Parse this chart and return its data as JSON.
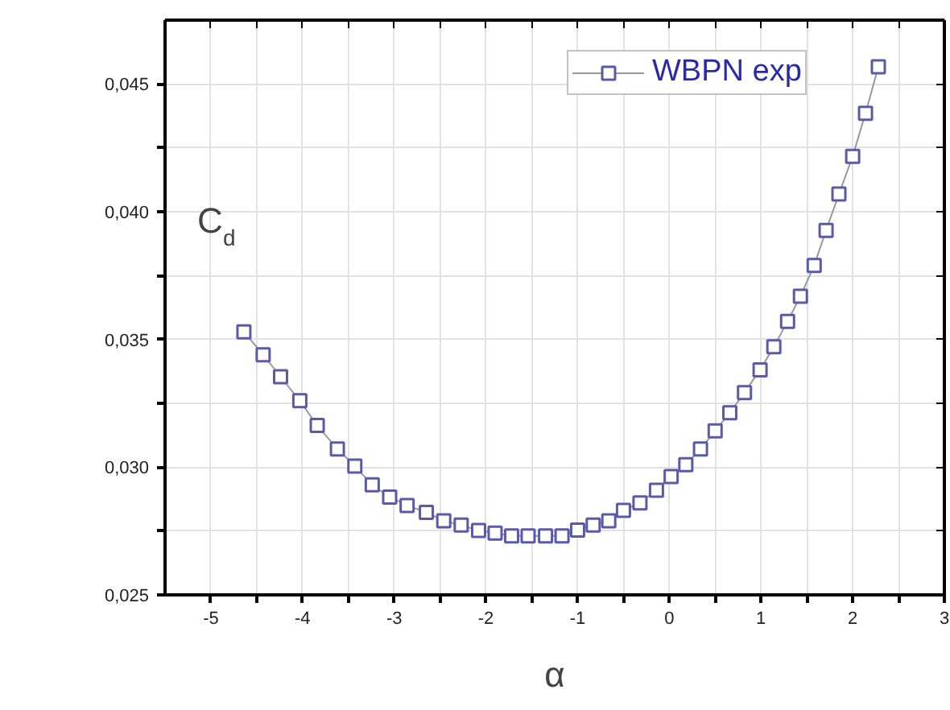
{
  "chart_data": {
    "type": "line",
    "xlabel": "α",
    "ylabel": "C$_{d}$",
    "x": [
      -4.64,
      -4.43,
      -4.24,
      -4.03,
      -3.84,
      -3.62,
      -3.43,
      -3.24,
      -3.05,
      -2.86,
      -2.65,
      -2.46,
      -2.27,
      -2.08,
      -1.9,
      -1.72,
      -1.54,
      -1.35,
      -1.17,
      -1.0,
      -0.83,
      -0.66,
      -0.5,
      -0.32,
      -0.14,
      0.02,
      0.18,
      0.34,
      0.5,
      0.66,
      0.82,
      0.99,
      1.14,
      1.29,
      1.43,
      1.58,
      1.71,
      1.85,
      2.0,
      2.14,
      2.28
    ],
    "series": [
      {
        "name": "WBPN exp",
        "color": "#5a5aa8",
        "values": [
          0.0353,
          0.0344,
          0.03354,
          0.0326,
          0.03163,
          0.03071,
          0.03004,
          0.02931,
          0.02883,
          0.0285,
          0.02823,
          0.0279,
          0.02773,
          0.02752,
          0.02742,
          0.02731,
          0.02731,
          0.02731,
          0.02731,
          0.02754,
          0.02773,
          0.0279,
          0.02831,
          0.0286,
          0.0291,
          0.02963,
          0.0301,
          0.03071,
          0.03142,
          0.03213,
          0.03292,
          0.03381,
          0.03471,
          0.03571,
          0.03669,
          0.0379,
          0.03927,
          0.04069,
          0.04217,
          0.04385,
          0.04567
        ]
      }
    ],
    "xlim": [
      -5.5,
      3
    ],
    "xticks": [
      -5,
      {
        "value": -4.5,
        "label": null
      },
      -4,
      {
        "value": -3.5,
        "label": null
      },
      -3,
      {
        "value": -2.5,
        "label": null
      },
      -2,
      {
        "value": -1.5,
        "label": null
      },
      -1,
      {
        "value": -0.5,
        "label": null
      },
      0,
      {
        "value": 0.5,
        "label": null
      },
      1,
      {
        "value": 1.5,
        "label": null
      },
      2,
      {
        "value": 2.5,
        "label": null
      },
      3
    ],
    "ylim": [
      0.025,
      0.0475
    ],
    "yticks": [
      {
        "value": 0.025,
        "label": "0,025"
      },
      {
        "value": 0.0275,
        "label": null
      },
      {
        "value": 0.03,
        "label": "0,030"
      },
      {
        "value": 0.0325,
        "label": null
      },
      {
        "value": 0.035,
        "label": "0,035"
      },
      {
        "value": 0.0375,
        "label": null
      },
      {
        "value": 0.04,
        "label": "0,040"
      },
      {
        "value": 0.0425,
        "label": null
      },
      {
        "value": 0.045,
        "label": "0,045"
      }
    ],
    "grid": true,
    "legend": "top right",
    "marker": "square",
    "line_style": "solid"
  }
}
